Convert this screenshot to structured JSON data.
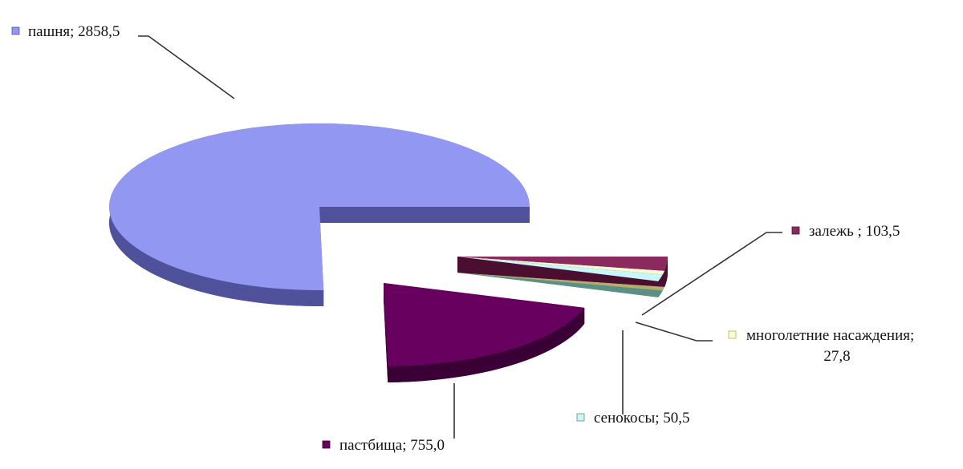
{
  "chart_data": {
    "type": "pie",
    "style": "3d-exploded",
    "legend": "inline-labels",
    "title": "",
    "series": [
      {
        "name": "",
        "slices": [
          {
            "label": "пашня",
            "value": 2858.5,
            "display": "пашня; 2858,5",
            "color": "#9297f2",
            "side": "#4f529a"
          },
          {
            "label": "залежь",
            "value": 103.5,
            "display": "залежь ; 103,5",
            "color": "#8b2a5f",
            "side": "#4a0f30"
          },
          {
            "label": "многолетние насаждения",
            "value": 27.8,
            "display": "многолетние насаждения;",
            "display2": "27,8",
            "color": "#fdfbd0",
            "side": "#b3ac6a"
          },
          {
            "label": "сенокосы",
            "value": 50.5,
            "display": "сенокосы; 50,5",
            "color": "#c9f6f9",
            "side": "#5c8f86"
          },
          {
            "label": "пастбища",
            "value": 755.0,
            "display": "пастбища; 755,0",
            "color": "#68005f",
            "side": "#3a0036"
          }
        ]
      }
    ]
  }
}
